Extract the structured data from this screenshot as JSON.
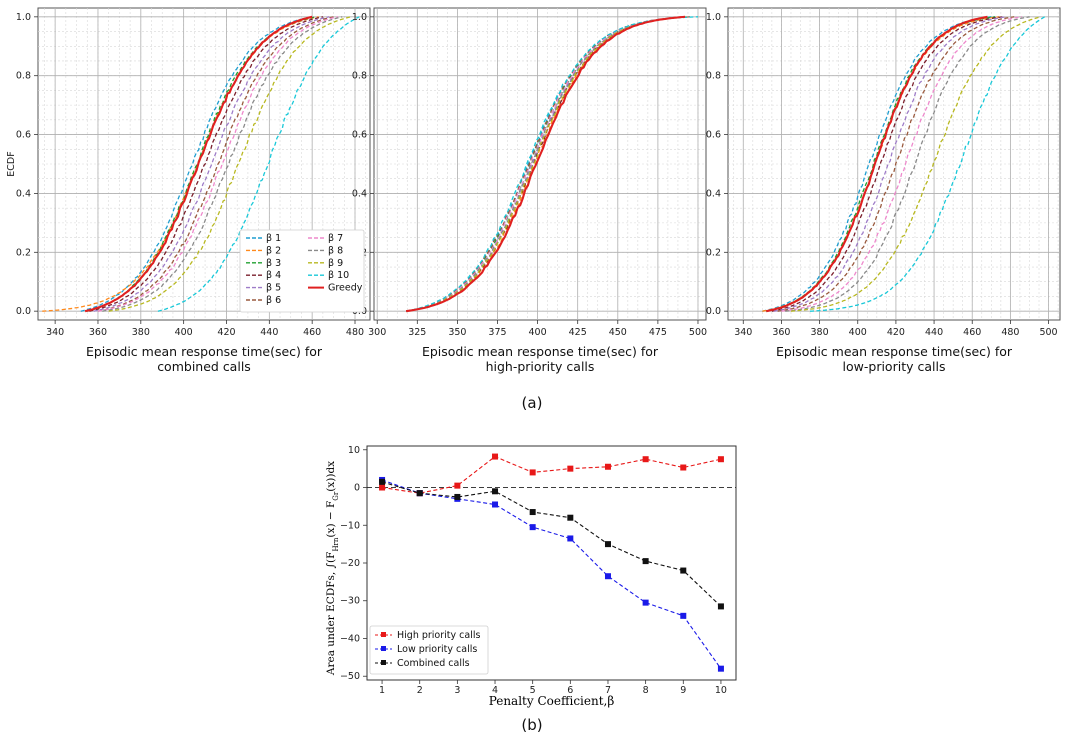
{
  "captions": {
    "a": "(a)",
    "b": "(b)"
  },
  "ecdf_legend": [
    {
      "label": "β 1",
      "color": "#1f9ed0",
      "dash": true
    },
    {
      "label": "β 2",
      "color": "#ff8a1c",
      "dash": true
    },
    {
      "label": "β 3",
      "color": "#20a030",
      "dash": true
    },
    {
      "label": "β 4",
      "color": "#7a1f2c",
      "dash": true
    },
    {
      "label": "β 5",
      "color": "#9e7cc8",
      "dash": true
    },
    {
      "label": "β 6",
      "color": "#9a5a3e",
      "dash": true
    },
    {
      "label": "β 7",
      "color": "#ee88cc",
      "dash": true
    },
    {
      "label": "β 8",
      "color": "#8a8a8a",
      "dash": true
    },
    {
      "label": "β 9",
      "color": "#b8b820",
      "dash": true
    },
    {
      "label": "β 10",
      "color": "#18c8d8",
      "dash": true
    },
    {
      "label": "Greedy",
      "color": "#e02020",
      "dash": false
    }
  ],
  "chart_data": [
    {
      "type": "line",
      "panel": "(a) left",
      "title": "",
      "xlabel_lines": [
        "Episodic mean response time(sec) for",
        "combined calls"
      ],
      "ylabel": "ECDF",
      "xlim": [
        332,
        487
      ],
      "ylim": [
        -0.03,
        1.03
      ],
      "xticks": [
        340,
        360,
        380,
        400,
        420,
        440,
        460,
        480
      ],
      "yticks": [
        "0.0",
        "0.2",
        "0.4",
        "0.6",
        "0.8",
        "1.0"
      ],
      "series": [
        {
          "name": "β 1",
          "mid": 404,
          "scale": 14,
          "xmin": 352,
          "xmax": 460
        },
        {
          "name": "β 2",
          "mid": 407,
          "scale": 14,
          "xmin": 334,
          "xmax": 463
        },
        {
          "name": "β 3",
          "mid": 406,
          "scale": 14,
          "xmin": 355,
          "xmax": 462
        },
        {
          "name": "β 4",
          "mid": 410,
          "scale": 14,
          "xmin": 356,
          "xmax": 465
        },
        {
          "name": "β 5",
          "mid": 413,
          "scale": 14,
          "xmin": 358,
          "xmax": 468
        },
        {
          "name": "β 6",
          "mid": 416,
          "scale": 14,
          "xmin": 360,
          "xmax": 470
        },
        {
          "name": "β 7",
          "mid": 418,
          "scale": 14,
          "xmin": 360,
          "xmax": 472
        },
        {
          "name": "β 8",
          "mid": 421,
          "scale": 14,
          "xmin": 362,
          "xmax": 474
        },
        {
          "name": "β 9",
          "mid": 426,
          "scale": 14,
          "xmin": 365,
          "xmax": 478
        },
        {
          "name": "β 10",
          "mid": 440,
          "scale": 14,
          "xmin": 388,
          "xmax": 482
        },
        {
          "name": "Greedy",
          "mid": 407,
          "scale": 14,
          "xmin": 354,
          "xmax": 460
        }
      ]
    },
    {
      "type": "line",
      "panel": "(a) middle",
      "title": "",
      "xlabel_lines": [
        "Episodic mean response time(sec) for",
        "high-priority calls"
      ],
      "ylabel": "",
      "xlim": [
        298,
        505
      ],
      "ylim": [
        -0.03,
        1.03
      ],
      "xticks": [
        300,
        325,
        350,
        375,
        400,
        425,
        450,
        475,
        500
      ],
      "yticks": [
        "0.0",
        "0.2",
        "0.4",
        "0.6",
        "0.8",
        "1.0"
      ],
      "series": [
        {
          "name": "β 1",
          "mid": 394,
          "scale": 19,
          "xmin": 318,
          "xmax": 495
        },
        {
          "name": "β 2",
          "mid": 398,
          "scale": 19,
          "xmin": 318,
          "xmax": 495
        },
        {
          "name": "β 3",
          "mid": 395,
          "scale": 19,
          "xmin": 318,
          "xmax": 495
        },
        {
          "name": "β 4",
          "mid": 397,
          "scale": 19,
          "xmin": 318,
          "xmax": 495
        },
        {
          "name": "β 5",
          "mid": 396,
          "scale": 19,
          "xmin": 318,
          "xmax": 495
        },
        {
          "name": "β 6",
          "mid": 394,
          "scale": 19,
          "xmin": 318,
          "xmax": 495
        },
        {
          "name": "β 7",
          "mid": 395,
          "scale": 19,
          "xmin": 318,
          "xmax": 495
        },
        {
          "name": "β 8",
          "mid": 396,
          "scale": 19,
          "xmin": 318,
          "xmax": 495
        },
        {
          "name": "β 9",
          "mid": 397,
          "scale": 19,
          "xmin": 318,
          "xmax": 495
        },
        {
          "name": "β 10",
          "mid": 393,
          "scale": 19,
          "xmin": 318,
          "xmax": 500
        },
        {
          "name": "Greedy",
          "mid": 399,
          "scale": 19,
          "xmin": 318,
          "xmax": 492
        }
      ]
    },
    {
      "type": "line",
      "panel": "(a) right",
      "title": "",
      "xlabel_lines": [
        "Episodic mean response time(sec) for",
        "low-priority calls"
      ],
      "ylabel": "",
      "xlim": [
        332,
        506
      ],
      "ylim": [
        -0.03,
        1.03
      ],
      "xticks": [
        340,
        360,
        380,
        400,
        420,
        440,
        460,
        480,
        500
      ],
      "yticks": [
        "0.0",
        "0.2",
        "0.4",
        "0.6",
        "0.8",
        "1.0"
      ],
      "series": [
        {
          "name": "β 1",
          "mid": 406,
          "scale": 14,
          "xmin": 350,
          "xmax": 470
        },
        {
          "name": "β 2",
          "mid": 409,
          "scale": 14,
          "xmin": 350,
          "xmax": 474
        },
        {
          "name": "β 3",
          "mid": 408,
          "scale": 14,
          "xmin": 352,
          "xmax": 472
        },
        {
          "name": "β 4",
          "mid": 412,
          "scale": 14,
          "xmin": 355,
          "xmax": 476
        },
        {
          "name": "β 5",
          "mid": 416,
          "scale": 14,
          "xmin": 356,
          "xmax": 478
        },
        {
          "name": "β 6",
          "mid": 420,
          "scale": 14,
          "xmin": 358,
          "xmax": 482
        },
        {
          "name": "β 7",
          "mid": 425,
          "scale": 14,
          "xmin": 360,
          "xmax": 486
        },
        {
          "name": "β 8",
          "mid": 430,
          "scale": 14,
          "xmin": 362,
          "xmax": 490
        },
        {
          "name": "β 9",
          "mid": 440,
          "scale": 15,
          "xmin": 365,
          "xmax": 496
        },
        {
          "name": "β 10",
          "mid": 455,
          "scale": 15,
          "xmin": 375,
          "xmax": 498
        },
        {
          "name": "Greedy",
          "mid": 409,
          "scale": 14,
          "xmin": 352,
          "xmax": 468
        }
      ]
    },
    {
      "type": "line",
      "panel": "(b)",
      "title": "",
      "xlabel": "Penalty Coefficient,β",
      "ylabel_main": "Area under ECDFs, ∫(F",
      "ylabel_sub": "Hrn",
      "ylabel_rest": "(x) − F",
      "ylabel_sub2": "Gr",
      "ylabel_end": "(x))dx",
      "x": [
        1,
        2,
        3,
        4,
        5,
        6,
        7,
        8,
        9,
        10
      ],
      "xlim": [
        0.6,
        10.4
      ],
      "ylim": [
        -51,
        11
      ],
      "xticks": [
        "1",
        "2",
        "3",
        "4",
        "5",
        "6",
        "7",
        "8",
        "9",
        "10"
      ],
      "yticks": [
        "10",
        "0",
        "−10",
        "−20",
        "−30",
        "−40",
        "−50"
      ],
      "reference_line": 0,
      "legend_position": "bottom-left",
      "series": [
        {
          "name": "High priority calls",
          "color": "#e81818",
          "values": [
            0,
            -1.5,
            0.5,
            8.2,
            4,
            5,
            5.5,
            7.5,
            5.3,
            7.5
          ]
        },
        {
          "name": "Low priority calls",
          "color": "#1a1ae8",
          "values": [
            2,
            -1.5,
            -3,
            -4.5,
            -10.5,
            -13.5,
            -23.5,
            -30.5,
            -34,
            -48
          ]
        },
        {
          "name": "Combined calls",
          "color": "#111111",
          "values": [
            1.5,
            -1.5,
            -2.5,
            -1,
            -6.5,
            -8,
            -15,
            -19.5,
            -22,
            -31.5
          ]
        }
      ]
    }
  ]
}
